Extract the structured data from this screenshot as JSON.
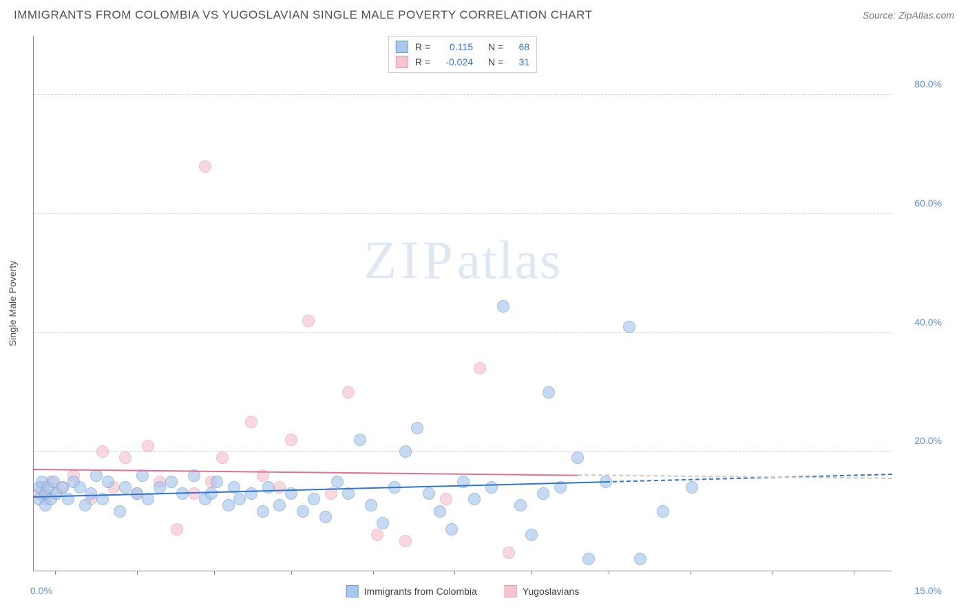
{
  "header": {
    "title": "IMMIGRANTS FROM COLOMBIA VS YUGOSLAVIAN SINGLE MALE POVERTY CORRELATION CHART",
    "source": "Source: ZipAtlas.com"
  },
  "watermark": {
    "bold": "ZIP",
    "light": "atlas"
  },
  "chart": {
    "type": "scatter",
    "xlim": [
      0,
      15
    ],
    "ylim": [
      0,
      90
    ],
    "x_tick_positions_pct": [
      2.5,
      12,
      21,
      30,
      39.5,
      49,
      58,
      67,
      76.5,
      86,
      95.5
    ],
    "x_axis_labels": {
      "left": "0.0%",
      "right": "15.0%"
    },
    "y_gridlines": [
      20,
      40,
      60,
      80
    ],
    "y_tick_labels": [
      "20.0%",
      "40.0%",
      "60.0%",
      "80.0%"
    ],
    "y_axis_title": "Single Male Poverty",
    "background_color": "#ffffff",
    "grid_color": "#d0d0d0",
    "axis_color": "#888888",
    "series": {
      "colombia": {
        "label": "Immigrants from Colombia",
        "fill": "#a8c8ec",
        "stroke": "#6a9bd8",
        "fill_opacity": 0.65,
        "marker_radius": 9,
        "trend": {
          "x1": 0,
          "y1": 12.5,
          "x2": 15,
          "y2": 16.3,
          "color": "#2f74d0",
          "dash_from_x": 10.0
        },
        "R": "0.115",
        "N": "68",
        "points": [
          [
            0.1,
            14
          ],
          [
            0.1,
            12
          ],
          [
            0.15,
            15
          ],
          [
            0.2,
            13
          ],
          [
            0.2,
            11
          ],
          [
            0.25,
            14
          ],
          [
            0.3,
            12
          ],
          [
            0.35,
            15
          ],
          [
            0.4,
            13
          ],
          [
            0.5,
            14
          ],
          [
            0.6,
            12
          ],
          [
            0.7,
            15
          ],
          [
            0.8,
            14
          ],
          [
            0.9,
            11
          ],
          [
            1.0,
            13
          ],
          [
            1.1,
            16
          ],
          [
            1.2,
            12
          ],
          [
            1.3,
            15
          ],
          [
            1.5,
            10
          ],
          [
            1.6,
            14
          ],
          [
            1.8,
            13
          ],
          [
            1.9,
            16
          ],
          [
            2.0,
            12
          ],
          [
            2.2,
            14
          ],
          [
            2.4,
            15
          ],
          [
            2.6,
            13
          ],
          [
            2.8,
            16
          ],
          [
            3.0,
            12
          ],
          [
            3.1,
            13
          ],
          [
            3.2,
            15
          ],
          [
            3.4,
            11
          ],
          [
            3.5,
            14
          ],
          [
            3.6,
            12
          ],
          [
            3.8,
            13
          ],
          [
            4.0,
            10
          ],
          [
            4.1,
            14
          ],
          [
            4.3,
            11
          ],
          [
            4.5,
            13
          ],
          [
            4.7,
            10
          ],
          [
            4.9,
            12
          ],
          [
            5.1,
            9
          ],
          [
            5.3,
            15
          ],
          [
            5.5,
            13
          ],
          [
            5.7,
            22
          ],
          [
            5.9,
            11
          ],
          [
            6.1,
            8
          ],
          [
            6.3,
            14
          ],
          [
            6.5,
            20
          ],
          [
            6.7,
            24
          ],
          [
            6.9,
            13
          ],
          [
            7.1,
            10
          ],
          [
            7.3,
            7
          ],
          [
            7.5,
            15
          ],
          [
            7.7,
            12
          ],
          [
            8.0,
            14
          ],
          [
            8.2,
            44.5
          ],
          [
            8.5,
            11
          ],
          [
            8.7,
            6
          ],
          [
            8.9,
            13
          ],
          [
            9.0,
            30
          ],
          [
            9.2,
            14
          ],
          [
            9.5,
            19
          ],
          [
            9.7,
            2
          ],
          [
            10.0,
            15
          ],
          [
            10.4,
            41
          ],
          [
            10.6,
            2
          ],
          [
            11.0,
            10
          ],
          [
            11.5,
            14
          ]
        ]
      },
      "yugoslavia": {
        "label": "Yugoslavians",
        "fill": "#f5c4cf",
        "stroke": "#e89bb0",
        "fill_opacity": 0.65,
        "marker_radius": 9,
        "trend": {
          "x1": 0,
          "y1": 17.2,
          "x2": 9.5,
          "y2": 16.2,
          "color": "#e06f95",
          "dash_from_x": 9.5,
          "dash_to_x": 15,
          "dash_color": "#c9c9c9"
        },
        "R": "-0.024",
        "N": "31",
        "points": [
          [
            0.1,
            13
          ],
          [
            0.15,
            14
          ],
          [
            0.2,
            12
          ],
          [
            0.3,
            15
          ],
          [
            0.4,
            13
          ],
          [
            0.5,
            14
          ],
          [
            0.7,
            16
          ],
          [
            1.0,
            12
          ],
          [
            1.2,
            20
          ],
          [
            1.4,
            14
          ],
          [
            1.6,
            19
          ],
          [
            1.8,
            13
          ],
          [
            2.0,
            21
          ],
          [
            2.2,
            15
          ],
          [
            2.5,
            7
          ],
          [
            2.8,
            13
          ],
          [
            3.0,
            68
          ],
          [
            3.1,
            15
          ],
          [
            3.3,
            19
          ],
          [
            3.8,
            25
          ],
          [
            4.0,
            16
          ],
          [
            4.3,
            14
          ],
          [
            4.5,
            22
          ],
          [
            4.8,
            42
          ],
          [
            5.2,
            13
          ],
          [
            5.5,
            30
          ],
          [
            6.0,
            6
          ],
          [
            6.5,
            5
          ],
          [
            7.2,
            12
          ],
          [
            7.8,
            34
          ],
          [
            8.3,
            3
          ]
        ]
      }
    },
    "top_legend": {
      "rows": [
        {
          "swatch_fill": "#a8c8ec",
          "swatch_stroke": "#6a9bd8",
          "r_label": "R =",
          "r_value": "0.115",
          "n_label": "N =",
          "n_value": "68"
        },
        {
          "swatch_fill": "#f5c4cf",
          "swatch_stroke": "#e89bb0",
          "r_label": "R =",
          "r_value": "-0.024",
          "n_label": "N =",
          "n_value": "31"
        }
      ]
    }
  }
}
